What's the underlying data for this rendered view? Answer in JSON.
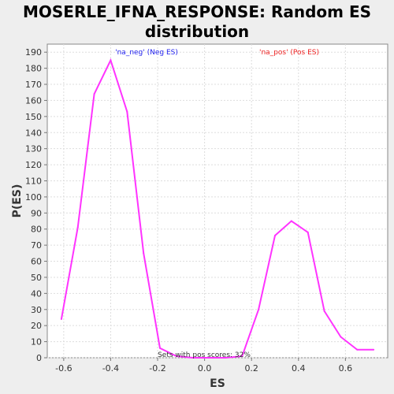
{
  "chart_data": {
    "type": "line",
    "title_lines": [
      "MOSERLE_IFNA_RESPONSE: Random ES",
      "distribution"
    ],
    "xlabel": "ES",
    "ylabel": "P(ES)",
    "xlim": [
      -0.67,
      0.78
    ],
    "ylim": [
      0,
      195
    ],
    "x_ticks": [
      "-0.6",
      "-0.4",
      "-0.2",
      "0.0",
      "0.2",
      "0.4",
      "0.6"
    ],
    "y_ticks": [
      "0",
      "10",
      "20",
      "30",
      "40",
      "50",
      "60",
      "70",
      "80",
      "90",
      "100",
      "110",
      "120",
      "130",
      "140",
      "150",
      "160",
      "170",
      "180",
      "190"
    ],
    "grid": true,
    "series": [
      {
        "color": "#ff33ff",
        "x": [
          -0.61,
          -0.54,
          -0.47,
          -0.4,
          -0.33,
          -0.26,
          -0.19,
          -0.12,
          -0.05,
          0.02,
          0.09,
          0.16,
          0.23,
          0.3,
          0.37,
          0.44,
          0.51,
          0.58,
          0.65,
          0.72
        ],
        "y": [
          24,
          81,
          164,
          185,
          153,
          65,
          6,
          1,
          0,
          0,
          0,
          1,
          30,
          76,
          85,
          78,
          29,
          13,
          5,
          5
        ]
      }
    ],
    "annotations": {
      "neg": {
        "text": "'na_neg' (Neg ES)",
        "color": "#2222ee"
      },
      "pos": {
        "text": "'na_pos' (Pos ES)",
        "color": "#ee2222"
      },
      "footer": {
        "text": "Sets with pos scores: 32%",
        "color": "#333333"
      }
    }
  }
}
